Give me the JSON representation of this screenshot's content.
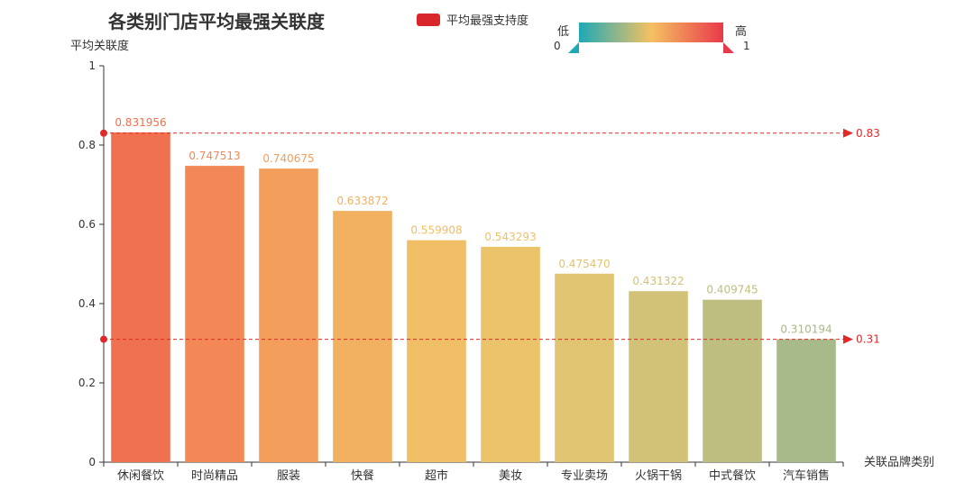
{
  "chart_data": {
    "type": "bar",
    "title": "各类别门店平均最强关联度",
    "ylabel": "平均关联度",
    "xlabel": "关联品牌类别",
    "ylim": [
      0,
      1
    ],
    "yticks": [
      0,
      0.2,
      0.4,
      0.6,
      0.8,
      1
    ],
    "categories": [
      "休闲餐饮",
      "时尚精品",
      "服装",
      "快餐",
      "超市",
      "美妆",
      "专业卖场",
      "火锅干锅",
      "中式餐饮",
      "汽车销售"
    ],
    "series": [
      {
        "name": "平均最强支持度",
        "values": [
          0.831956,
          0.747513,
          0.740675,
          0.633872,
          0.559908,
          0.543293,
          0.47547,
          0.431322,
          0.409745,
          0.310194
        ],
        "value_labels": [
          "0.831956",
          "0.747513",
          "0.740675",
          "0.633872",
          "0.559908",
          "0.543293",
          "0.475470",
          "0.431322",
          "0.409745",
          "0.310194"
        ]
      }
    ],
    "mark_lines": [
      {
        "value": 0.83,
        "label": "0.83"
      },
      {
        "value": 0.31,
        "label": "0.31"
      }
    ],
    "visual_map": {
      "low_label": "低",
      "high_label": "高",
      "min": "0",
      "max": "1",
      "colors": [
        "#1da9b7",
        "#f5c162",
        "#e8394a"
      ]
    },
    "grid": false,
    "legend_position": "top-center"
  },
  "colors": {
    "bar_top": "#f0714f",
    "bar_bottom": "#a8b98a",
    "markline": "#e02a2a",
    "legend_swatch": "#d9262b"
  }
}
